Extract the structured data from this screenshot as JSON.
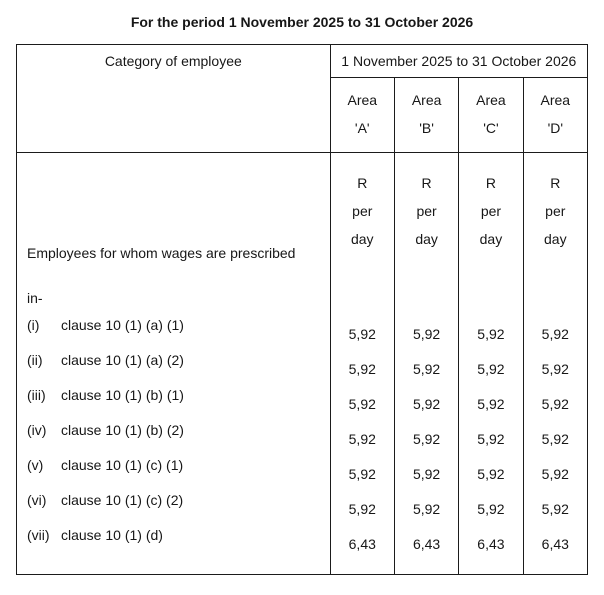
{
  "title": "For the period 1 November 2025 to 31 October 2026",
  "header": {
    "category_label": "Category of employee",
    "period_label": "1 November 2025 to 31 October 2026",
    "areas": [
      {
        "line1": "Area",
        "line2": "'A'"
      },
      {
        "line1": "Area",
        "line2": "'B'"
      },
      {
        "line1": "Area",
        "line2": "'C'"
      },
      {
        "line1": "Area",
        "line2": "'D'"
      }
    ],
    "unit": {
      "l1": "R",
      "l2": "per",
      "l3": "day"
    }
  },
  "intro": {
    "line1": "Employees for whom wages are prescribed",
    "line2": "in-"
  },
  "rows": [
    {
      "roman": "(i)",
      "clause": "clause 10 (1) (a) (1)",
      "a": "5,92",
      "b": "5,92",
      "c": "5,92",
      "d": "5,92"
    },
    {
      "roman": "(ii)",
      "clause": "clause 10 (1) (a) (2)",
      "a": "5,92",
      "b": "5,92",
      "c": "5,92",
      "d": "5,92"
    },
    {
      "roman": "(iii)",
      "clause": "clause 10 (1) (b) (1)",
      "a": "5,92",
      "b": "5,92",
      "c": "5,92",
      "d": "5,92"
    },
    {
      "roman": "(iv)",
      "clause": "clause 10 (1) (b) (2)",
      "a": "5,92",
      "b": "5,92",
      "c": "5,92",
      "d": "5,92"
    },
    {
      "roman": "(v)",
      "clause": "clause 10 (1) (c) (1)",
      "a": "5,92",
      "b": "5,92",
      "c": "5,92",
      "d": "5,92"
    },
    {
      "roman": "(vi)",
      "clause": "clause 10 (1) (c) (2)",
      "a": "5,92",
      "b": "5,92",
      "c": "5,92",
      "d": "5,92"
    },
    {
      "roman": "(vii)",
      "clause": "clause 10 (1) (d)",
      "a": "6,43",
      "b": "6,43",
      "c": "6,43",
      "d": "6,43"
    }
  ],
  "colors": {
    "text": "#171717",
    "border": "#1b1b1b",
    "background": "#ffffff"
  },
  "typography": {
    "font_family": "Arial",
    "base_size_pt": 10,
    "title_weight": "bold"
  }
}
